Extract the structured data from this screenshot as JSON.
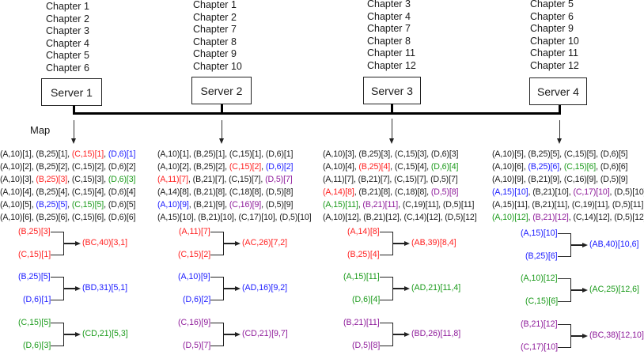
{
  "map_label": "Map",
  "servers": [
    {
      "name": "Server 1",
      "chapters": [
        "Chapter 1",
        "Chapter 2",
        "Chapter 3",
        "Chapter 4",
        "Chapter 5",
        "Chapter 6"
      ]
    },
    {
      "name": "Server 2",
      "chapters": [
        "Chapter 1",
        "Chapter 2",
        "Chapter 7",
        "Chapter 8",
        "Chapter 9",
        "Chapter 10"
      ]
    },
    {
      "name": "Server 3",
      "chapters": [
        "Chapter 3",
        "Chapter 4",
        "Chapter 7",
        "Chapter 8",
        "Chapter 11",
        "Chapter 12"
      ]
    },
    {
      "name": "Server 4",
      "chapters": [
        "Chapter 5",
        "Chapter 6",
        "Chapter 9",
        "Chapter 10",
        "Chapter 11",
        "Chapter 12"
      ]
    }
  ],
  "map_outputs": [
    [
      [
        [
          "(A,10)[1]",
          "black"
        ],
        [
          "(B,25)[1]",
          "black"
        ],
        [
          "(C,15)[1]",
          "red"
        ],
        [
          "(D,6)[1]",
          "blue"
        ]
      ],
      [
        [
          "(A,10)[2]",
          "black"
        ],
        [
          "(B,25)[2]",
          "black"
        ],
        [
          "(C,15)[2]",
          "black"
        ],
        [
          "(D,6)[2]",
          "black"
        ]
      ],
      [
        [
          "(A,10)[3]",
          "black"
        ],
        [
          "(B,25)[3]",
          "red"
        ],
        [
          "(C,15)[3]",
          "black"
        ],
        [
          "(D,6)[3]",
          "green"
        ]
      ],
      [
        [
          "(A,10)[4]",
          "black"
        ],
        [
          "(B,25)[4]",
          "black"
        ],
        [
          "(C,15)[4]",
          "black"
        ],
        [
          "(D,6)[4]",
          "black"
        ]
      ],
      [
        [
          "(A,10)[5]",
          "black"
        ],
        [
          "(B,25)[5]",
          "blue"
        ],
        [
          "(C,15)[5]",
          "green"
        ],
        [
          "(D,6)[5]",
          "black"
        ]
      ],
      [
        [
          "(A,10)[6]",
          "black"
        ],
        [
          "(B,25)[6]",
          "black"
        ],
        [
          "(C,15)[6]",
          "black"
        ],
        [
          "(D,6)[6]",
          "black"
        ]
      ]
    ],
    [
      [
        [
          "(A,10)[1]",
          "black"
        ],
        [
          "(B,25)[1]",
          "black"
        ],
        [
          "(C,15)[1]",
          "black"
        ],
        [
          "(D,6)[1]",
          "black"
        ]
      ],
      [
        [
          "(A,10)[2]",
          "black"
        ],
        [
          "(B,25)[2]",
          "black"
        ],
        [
          "(C,15)[2]",
          "red"
        ],
        [
          "(D,6)[2]",
          "blue"
        ]
      ],
      [
        [
          "(A,11)[7]",
          "red"
        ],
        [
          "(B,21)[7]",
          "black"
        ],
        [
          "(C,15)[7]",
          "black"
        ],
        [
          "(D,5)[7]",
          "purple"
        ]
      ],
      [
        [
          "(A,14)[8]",
          "black"
        ],
        [
          "(B,21)[8]",
          "black"
        ],
        [
          "(C,18)[8]",
          "black"
        ],
        [
          "(D,5)[8]",
          "black"
        ]
      ],
      [
        [
          "(A,10)[9]",
          "blue"
        ],
        [
          "(B,21)[9]",
          "black"
        ],
        [
          "(C,16)[9]",
          "purple"
        ],
        [
          "(D,5)[9]",
          "black"
        ]
      ],
      [
        [
          "(A,15)[10]",
          "black"
        ],
        [
          "(B,21)[10]",
          "black"
        ],
        [
          "(C,17)[10]",
          "black"
        ],
        [
          "(D,5)[10]",
          "black"
        ]
      ]
    ],
    [
      [
        [
          "(A,10)[3]",
          "black"
        ],
        [
          "(B,25)[3]",
          "black"
        ],
        [
          "(C,15)[3]",
          "black"
        ],
        [
          "(D,6)[3]",
          "black"
        ]
      ],
      [
        [
          "(A,10)[4]",
          "black"
        ],
        [
          "(B,25)[4]",
          "red"
        ],
        [
          "(C,15)[4]",
          "black"
        ],
        [
          "(D,6)[4]",
          "green"
        ]
      ],
      [
        [
          "(A,11)[7]",
          "black"
        ],
        [
          "(B,21)[7]",
          "black"
        ],
        [
          "(C,15)[7]",
          "black"
        ],
        [
          "(D,5)[7]",
          "black"
        ]
      ],
      [
        [
          "(A,14)[8]",
          "red"
        ],
        [
          "(B,21)[8]",
          "black"
        ],
        [
          "(C,18)[8]",
          "black"
        ],
        [
          "(D,5)[8]",
          "purple"
        ]
      ],
      [
        [
          "(A,15)[11]",
          "green"
        ],
        [
          "(B,21)[11]",
          "purple"
        ],
        [
          "(C,19)[11]",
          "black"
        ],
        [
          "(D,5)[11]",
          "black"
        ]
      ],
      [
        [
          "(A,10)[12]",
          "black"
        ],
        [
          "(B,21)[12]",
          "black"
        ],
        [
          "(C,14)[12]",
          "black"
        ],
        [
          "(D,5)[12]",
          "black"
        ]
      ]
    ],
    [
      [
        [
          "(A,10)[5]",
          "black"
        ],
        [
          "(B,25)[5]",
          "black"
        ],
        [
          "(C,15)[5]",
          "black"
        ],
        [
          "(D,6)[5]",
          "black"
        ]
      ],
      [
        [
          "(A,10)[6]",
          "black"
        ],
        [
          "(B,25)[6]",
          "blue"
        ],
        [
          "(C,15)[6]",
          "green"
        ],
        [
          "(D,6)[6]",
          "black"
        ]
      ],
      [
        [
          "(A,10)[9]",
          "black"
        ],
        [
          "(B,21)[9]",
          "black"
        ],
        [
          "(C,16)[9]",
          "black"
        ],
        [
          "(D,5)[9]",
          "black"
        ]
      ],
      [
        [
          "(A,15)[10]",
          "blue"
        ],
        [
          "(B,21)[10]",
          "black"
        ],
        [
          "(C,17)[10]",
          "purple"
        ],
        [
          "(D,5)[10]",
          "black"
        ]
      ],
      [
        [
          "(A,15)[11]",
          "black"
        ],
        [
          "(B,21)[11]",
          "black"
        ],
        [
          "(C,19)[11]",
          "black"
        ],
        [
          "(D,5)[11]",
          "black"
        ]
      ],
      [
        [
          "(A,10)[12]",
          "green"
        ],
        [
          "(B,21)[12]",
          "purple"
        ],
        [
          "(C,14)[12]",
          "black"
        ],
        [
          "(D,5)[12]",
          "black"
        ]
      ]
    ]
  ],
  "reductions": [
    [
      {
        "in1": "(B,25)[3]",
        "in2": "(C,15)[1]",
        "out": "(BC,40)[3,1]",
        "color": "red"
      },
      {
        "in1": "(B,25)[5]",
        "in2": "(D,6)[1]",
        "out": "(BD,31)[5,1]",
        "color": "blue"
      },
      {
        "in1": "(C,15)[5]",
        "in2": "(D,6)[3]",
        "out": "(CD,21)[5,3]",
        "color": "green"
      }
    ],
    [
      {
        "in1": "(A,11)[7]",
        "in2": "(C,15)[2]",
        "out": "(AC,26)[7,2]",
        "color": "red"
      },
      {
        "in1": "(A,10)[9]",
        "in2": "(D,6)[2]",
        "out": "(AD,16)[9,2]",
        "color": "blue"
      },
      {
        "in1": "(C,16)[9]",
        "in2": "(D,5)[7]",
        "out": "(CD,21)[9,7]",
        "color": "purple"
      }
    ],
    [
      {
        "in1": "(A,14)[8]",
        "in2": "(B,25)[4]",
        "out": "(AB,39)[8,4]",
        "color": "red"
      },
      {
        "in1": "(A,15)[11]",
        "in2": "(D,6)[4]",
        "out": "(AD,21)[11,4]",
        "color": "green"
      },
      {
        "in1": "(B,21)[11]",
        "in2": "(D,5)[8]",
        "out": "(BD,26)[11,8]",
        "color": "purple"
      }
    ],
    [
      {
        "in1": "(A,15)[10]",
        "in2": "(B,25)[6]",
        "out": "(AB,40)[10,6]",
        "color": "blue"
      },
      {
        "in1": "(A,10)[12]",
        "in2": "(C,15)[6]",
        "out": "(AC,25)[12,6]",
        "color": "green"
      },
      {
        "in1": "(B,21)[12]",
        "in2": "(C,17)[10]",
        "out": "(BC,38)[12,10]",
        "color": "purple"
      }
    ]
  ],
  "colors": {
    "red": "#ff2020",
    "blue": "#1a1aff",
    "green": "#1a9a1a",
    "purple": "#8e1a9a",
    "black": "#1a1a1a"
  }
}
